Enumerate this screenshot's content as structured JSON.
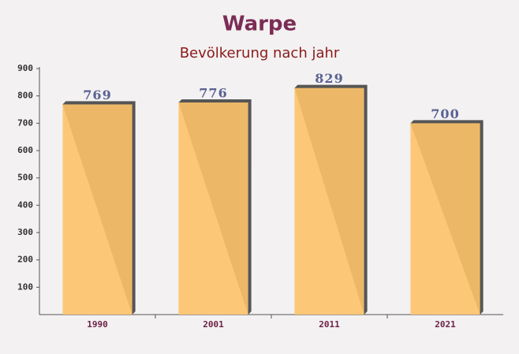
{
  "chart_data": {
    "type": "bar",
    "title": "Warpe",
    "subtitle": "Bevölkerung nach jahr",
    "categories": [
      "1990",
      "2001",
      "2011",
      "2021"
    ],
    "values": [
      769,
      776,
      829,
      700
    ],
    "color": "#fdc36a",
    "ylim": [
      0,
      900
    ],
    "yticks": [
      100,
      200,
      300,
      400,
      500,
      600,
      700,
      800,
      900
    ]
  }
}
